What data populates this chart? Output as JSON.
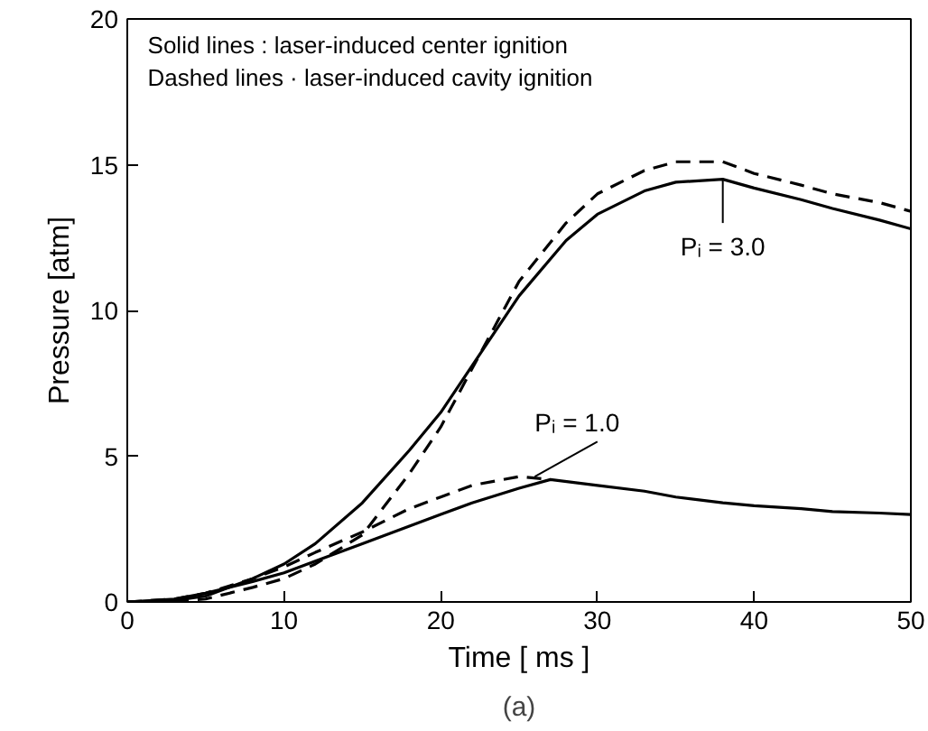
{
  "chart_data": {
    "type": "line",
    "xlabel": "Time [ ms ]",
    "ylabel": "Pressure [atm]",
    "xlim": [
      0,
      50
    ],
    "ylim": [
      0,
      20
    ],
    "xticks": [
      0,
      10,
      20,
      30,
      40,
      50
    ],
    "yticks": [
      0,
      5,
      10,
      15,
      20
    ],
    "grid": false,
    "marker": "none",
    "series": [
      {
        "color": "#000000",
        "line_style": "solid",
        "x": [
          0,
          3,
          5,
          8,
          10,
          12,
          15,
          18,
          20,
          22,
          25,
          28,
          30,
          33,
          35,
          38,
          40,
          43,
          45,
          48,
          50
        ],
        "values": [
          0,
          0.05,
          0.2,
          0.8,
          1.3,
          2.0,
          3.4,
          5.2,
          6.5,
          8.1,
          10.5,
          12.4,
          13.3,
          14.1,
          14.4,
          14.5,
          14.2,
          13.8,
          13.5,
          13.1,
          12.8
        ]
      },
      {
        "color": "#000000",
        "line_style": "dashed",
        "x": [
          0,
          3,
          5,
          8,
          10,
          12,
          15,
          18,
          20,
          22,
          25,
          28,
          30,
          33,
          35,
          38,
          40,
          43,
          45,
          48,
          50
        ],
        "values": [
          0,
          0.03,
          0.1,
          0.5,
          0.8,
          1.3,
          2.3,
          4.4,
          6.0,
          8.0,
          11.0,
          13.0,
          14.0,
          14.8,
          15.1,
          15.1,
          14.7,
          14.3,
          14.0,
          13.7,
          13.4
        ]
      },
      {
        "color": "#000000",
        "line_style": "solid",
        "x": [
          0,
          3,
          5,
          8,
          10,
          12,
          15,
          18,
          20,
          22,
          25,
          27,
          30,
          33,
          35,
          38,
          40,
          43,
          45,
          48,
          50
        ],
        "values": [
          0,
          0.1,
          0.3,
          0.7,
          1.0,
          1.4,
          2.0,
          2.6,
          3.0,
          3.4,
          3.9,
          4.2,
          4.0,
          3.8,
          3.6,
          3.4,
          3.3,
          3.2,
          3.1,
          3.05,
          3.0
        ]
      },
      {
        "color": "#000000",
        "line_style": "dashed",
        "x": [
          0,
          3,
          5,
          8,
          10,
          12,
          15,
          18,
          20,
          22,
          25,
          27
        ],
        "values": [
          0,
          0.1,
          0.3,
          0.8,
          1.2,
          1.7,
          2.4,
          3.2,
          3.6,
          4.0,
          4.3,
          4.2
        ]
      }
    ],
    "annotations": [
      "Solid lines : laser-induced center ignition",
      "Dashed lines · laser-induced cavity ignition",
      {
        "text": "Pᵢ = 3.0",
        "x": 38,
        "y": 14.5
      },
      {
        "text": "Pᵢ = 1.0",
        "x": 26,
        "y": 4.3
      },
      "(a)"
    ]
  }
}
